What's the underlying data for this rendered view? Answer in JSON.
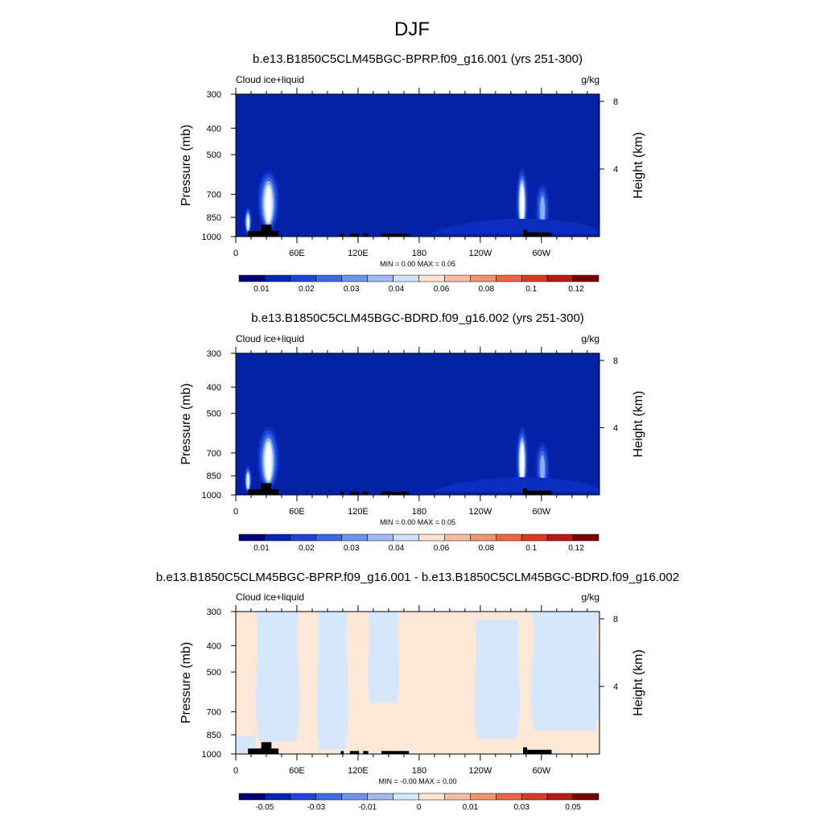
{
  "figure": {
    "title": "DJF"
  },
  "colors": {
    "abs_palette": [
      "#00007a",
      "#0027b3",
      "#1a47d6",
      "#3b6ae6",
      "#6d93ee",
      "#9fbaf5",
      "#cfe0fa",
      "#fde3d0",
      "#f7bca5",
      "#f3926f",
      "#ec6640",
      "#d83b22",
      "#b51d12",
      "#7a0000"
    ],
    "diff_palette": [
      "#00007a",
      "#0027b3",
      "#1a47d6",
      "#3b6ae6",
      "#6d93ee",
      "#9fbaf5",
      "#d6e7fb",
      "#fde8d8",
      "#f7bca5",
      "#f3926f",
      "#ec6640",
      "#d83b22",
      "#b51d12",
      "#7a0000"
    ],
    "diff_blue": "#d6e7fb",
    "diff_peach": "#fde8d8",
    "topography": "#000000"
  },
  "chart_data": [
    {
      "type": "heatmap",
      "title": "b.e13.B1850C5CLM45BGC-BPRP.f09_g16.001 (yrs 251-300)",
      "left_label": "Cloud ice+liquid",
      "right_label": "g/kg",
      "ylabel": "Pressure (mb)",
      "ylabel_right": "Height (km)",
      "x_ticks": [
        "0",
        "60E",
        "120E",
        "180",
        "120W",
        "60W"
      ],
      "x_tick_lons": [
        0,
        60,
        120,
        180,
        240,
        300
      ],
      "xlim": [
        0,
        357
      ],
      "y_ticks": [
        "300",
        "400",
        "500",
        "700",
        "850",
        "1000"
      ],
      "y_tick_values": [
        300,
        400,
        500,
        700,
        850,
        1000
      ],
      "ylim": [
        1000,
        300
      ],
      "y_scale": "log",
      "height_ticks": [
        "8",
        "4"
      ],
      "height_tick_values": [
        8,
        4
      ],
      "minmax": "MIN =   0.00  MAX =   0.05",
      "colorbar_labels": [
        "0.01",
        "0.02",
        "0.03",
        "0.04",
        "0.06",
        "0.08",
        "0.1",
        "0.12"
      ],
      "features": [
        {
          "kind": "plume",
          "lon": 12,
          "p_top": 780,
          "p_bot": 985,
          "half_width": 3,
          "levels": [
            0.005,
            0.01,
            0.02,
            0.03,
            0.04
          ]
        },
        {
          "kind": "plume",
          "lon": 32,
          "p_top": 570,
          "p_bot": 960,
          "half_width": 10,
          "levels": [
            0.005,
            0.01,
            0.02,
            0.03,
            0.04,
            0.05
          ]
        },
        {
          "kind": "plume",
          "lon": 281,
          "p_top": 560,
          "p_bot": 975,
          "half_width": 5,
          "levels": [
            0.005,
            0.01,
            0.02,
            0.03,
            0.04,
            0.05
          ]
        },
        {
          "kind": "plume",
          "lon": 301,
          "p_top": 640,
          "p_bot": 960,
          "half_width": 6,
          "levels": [
            0.005,
            0.01,
            0.02,
            0.03
          ]
        },
        {
          "kind": "band",
          "lon_start": 190,
          "lon_end": 357,
          "p_top": 860,
          "p_bot": 975,
          "level": 0.005
        }
      ]
    },
    {
      "type": "heatmap",
      "title": "b.e13.B1850C5CLM45BGC-BDRD.f09_g16.002 (yrs 251-300)",
      "left_label": "Cloud ice+liquid",
      "right_label": "g/kg",
      "ylabel": "Pressure (mb)",
      "ylabel_right": "Height (km)",
      "x_ticks": [
        "0",
        "60E",
        "120E",
        "180",
        "120W",
        "60W"
      ],
      "x_tick_lons": [
        0,
        60,
        120,
        180,
        240,
        300
      ],
      "xlim": [
        0,
        357
      ],
      "y_ticks": [
        "300",
        "400",
        "500",
        "700",
        "850",
        "1000"
      ],
      "y_tick_values": [
        300,
        400,
        500,
        700,
        850,
        1000
      ],
      "ylim": [
        1000,
        300
      ],
      "y_scale": "log",
      "height_ticks": [
        "8",
        "4"
      ],
      "height_tick_values": [
        8,
        4
      ],
      "minmax": "MIN =   0.00  MAX =   0.05",
      "colorbar_labels": [
        "0.01",
        "0.02",
        "0.03",
        "0.04",
        "0.06",
        "0.08",
        "0.1",
        "0.12"
      ],
      "features": [
        {
          "kind": "plume",
          "lon": 12,
          "p_top": 780,
          "p_bot": 985,
          "half_width": 3,
          "levels": [
            0.005,
            0.01,
            0.02,
            0.03,
            0.04
          ]
        },
        {
          "kind": "plume",
          "lon": 32,
          "p_top": 560,
          "p_bot": 960,
          "half_width": 10,
          "levels": [
            0.005,
            0.01,
            0.02,
            0.03,
            0.04,
            0.05
          ]
        },
        {
          "kind": "plume",
          "lon": 281,
          "p_top": 560,
          "p_bot": 975,
          "half_width": 5,
          "levels": [
            0.005,
            0.01,
            0.02,
            0.03,
            0.04,
            0.05
          ]
        },
        {
          "kind": "plume",
          "lon": 301,
          "p_top": 640,
          "p_bot": 960,
          "half_width": 6,
          "levels": [
            0.005,
            0.01,
            0.02,
            0.03
          ]
        },
        {
          "kind": "band",
          "lon_start": 190,
          "lon_end": 357,
          "p_top": 860,
          "p_bot": 975,
          "level": 0.005
        }
      ]
    },
    {
      "type": "heatmap",
      "title": "b.e13.B1850C5CLM45BGC-BPRP.f09_g16.001 - b.e13.B1850C5CLM45BGC-BDRD.f09_g16.002",
      "left_label": "Cloud ice+liquid",
      "right_label": "g/kg",
      "ylabel": "Pressure (mb)",
      "ylabel_right": "Height (km)",
      "x_ticks": [
        "0",
        "60E",
        "120E",
        "180",
        "120W",
        "60W"
      ],
      "x_tick_lons": [
        0,
        60,
        120,
        180,
        240,
        300
      ],
      "xlim": [
        0,
        357
      ],
      "y_ticks": [
        "300",
        "400",
        "500",
        "700",
        "850",
        "1000"
      ],
      "y_tick_values": [
        300,
        400,
        500,
        700,
        850,
        1000
      ],
      "ylim": [
        1000,
        300
      ],
      "y_scale": "log",
      "height_ticks": [
        "8",
        "4"
      ],
      "height_tick_values": [
        8,
        4
      ],
      "minmax": "MIN =  -0.00  MAX =   0.00",
      "colorbar_labels": [
        "-0.05",
        "-0.03",
        "-0.01",
        "0",
        "0.01",
        "0.03",
        "0.05"
      ],
      "diff_regions": [
        {
          "sign": "negative",
          "lon_start": 20,
          "lon_end": 62,
          "p_top": 300,
          "p_bot": 900
        },
        {
          "sign": "negative",
          "lon_start": 80,
          "lon_end": 110,
          "p_top": 300,
          "p_bot": 960
        },
        {
          "sign": "negative",
          "lon_start": 130,
          "lon_end": 160,
          "p_top": 300,
          "p_bot": 650
        },
        {
          "sign": "negative",
          "lon_start": 235,
          "lon_end": 278,
          "p_top": 320,
          "p_bot": 880
        },
        {
          "sign": "negative",
          "lon_start": 290,
          "lon_end": 357,
          "p_top": 300,
          "p_bot": 820
        },
        {
          "sign": "negative",
          "lon_start": 0,
          "lon_end": 20,
          "p_top": 860,
          "p_bot": 990
        }
      ]
    }
  ],
  "topography": [
    {
      "lon_start": 12,
      "lon_end": 42,
      "p_top": 955
    },
    {
      "lon_start": 25,
      "lon_end": 35,
      "p_top": 905
    },
    {
      "lon_start": 103,
      "lon_end": 106,
      "p_top": 975
    },
    {
      "lon_start": 112,
      "lon_end": 121,
      "p_top": 975
    },
    {
      "lon_start": 125,
      "lon_end": 130,
      "p_top": 975
    },
    {
      "lon_start": 143,
      "lon_end": 170,
      "p_top": 975
    },
    {
      "lon_start": 282,
      "lon_end": 310,
      "p_top": 965
    },
    {
      "lon_start": 282,
      "lon_end": 286,
      "p_top": 945
    }
  ]
}
